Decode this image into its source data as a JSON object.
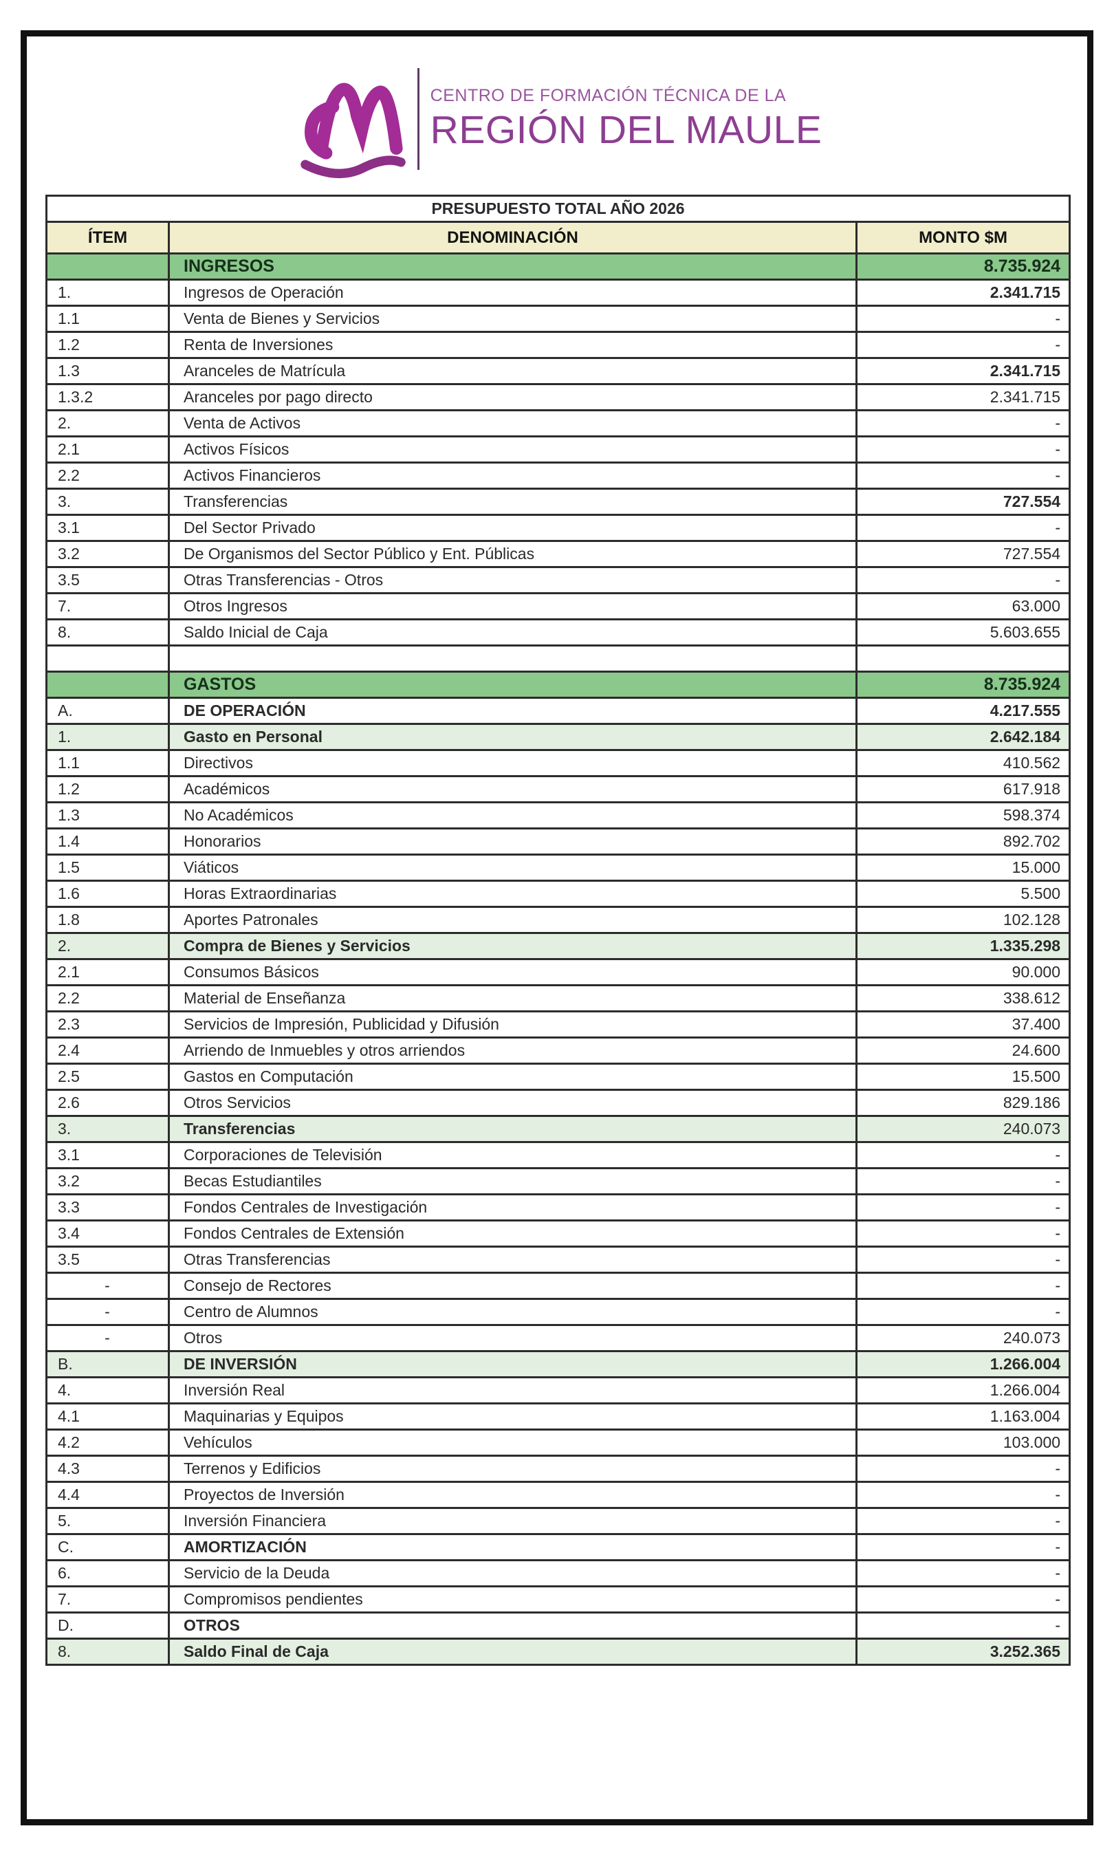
{
  "logo": {
    "line1": "CENTRO DE FORMACIÓN TÉCNICA DE LA",
    "line2": "REGIÓN DEL MAULE",
    "mark_color": "#a32c96",
    "accent_color": "#8d3e92"
  },
  "colors": {
    "header_cream": "#f2eecb",
    "section_green": "#8bc88b",
    "subsection_green": "#e3efe0",
    "border_dark": "#2c2c2c"
  },
  "table": {
    "title": "PRESUPUESTO TOTAL AÑO 2026",
    "columns": [
      "ÍTEM",
      "DENOMINACIÓN",
      "MONTO $M"
    ],
    "rows": [
      {
        "item": "",
        "name": "INGRESOS",
        "amount": "8.735.924",
        "style": "section",
        "nb": true,
        "ab": true
      },
      {
        "item": "1.",
        "name": "Ingresos de Operación",
        "amount": "2.341.715",
        "style": "plain",
        "nb": false,
        "ab": true
      },
      {
        "item": "1.1",
        "name": "Venta de Bienes y Servicios",
        "amount": "-",
        "style": "plain",
        "nb": false,
        "ab": false
      },
      {
        "item": "1.2",
        "name": "Renta de Inversiones",
        "amount": "-",
        "style": "plain",
        "nb": false,
        "ab": false
      },
      {
        "item": "1.3",
        "name": "Aranceles de Matrícula",
        "amount": "2.341.715",
        "style": "plain",
        "nb": false,
        "ab": true
      },
      {
        "item": "1.3.2",
        "name": "Aranceles por pago directo",
        "amount": "2.341.715",
        "style": "plain",
        "nb": false,
        "ab": false
      },
      {
        "item": "2.",
        "name": "Venta de Activos",
        "amount": "-",
        "style": "plain",
        "nb": false,
        "ab": false
      },
      {
        "item": "2.1",
        "name": "Activos Físicos",
        "amount": "-",
        "style": "plain",
        "nb": false,
        "ab": false
      },
      {
        "item": "2.2",
        "name": "Activos Financieros",
        "amount": "-",
        "style": "plain",
        "nb": false,
        "ab": false
      },
      {
        "item": "3.",
        "name": "Transferencias",
        "amount": "727.554",
        "style": "plain",
        "nb": false,
        "ab": true
      },
      {
        "item": "3.1",
        "name": "Del Sector Privado",
        "amount": "-",
        "style": "plain",
        "nb": false,
        "ab": false
      },
      {
        "item": "3.2",
        "name": "De Organismos del Sector Público y Ent. Públicas",
        "amount": "727.554",
        "style": "plain",
        "nb": false,
        "ab": false
      },
      {
        "item": "3.5",
        "name": "Otras Transferencias - Otros",
        "amount": "-",
        "style": "plain",
        "nb": false,
        "ab": false
      },
      {
        "item": "7.",
        "name": "Otros Ingresos",
        "amount": "63.000",
        "style": "plain",
        "nb": false,
        "ab": false
      },
      {
        "item": "8.",
        "name": "Saldo Inicial de Caja",
        "amount": "5.603.655",
        "style": "plain",
        "nb": false,
        "ab": false
      },
      {
        "item": "",
        "name": "",
        "amount": "",
        "style": "blank",
        "nb": false,
        "ab": false
      },
      {
        "item": "",
        "name": "GASTOS",
        "amount": "8.735.924",
        "style": "section",
        "nb": true,
        "ab": true
      },
      {
        "item": "A.",
        "name": "DE OPERACIÓN",
        "amount": "4.217.555",
        "style": "plain",
        "nb": true,
        "ab": true
      },
      {
        "item": "1.",
        "name": "Gasto en Personal",
        "amount": "2.642.184",
        "style": "sub",
        "nb": true,
        "ab": true
      },
      {
        "item": "1.1",
        "name": "Directivos",
        "amount": "410.562",
        "style": "plain",
        "nb": false,
        "ab": false
      },
      {
        "item": "1.2",
        "name": "Académicos",
        "amount": "617.918",
        "style": "plain",
        "nb": false,
        "ab": false
      },
      {
        "item": "1.3",
        "name": "No Académicos",
        "amount": "598.374",
        "style": "plain",
        "nb": false,
        "ab": false
      },
      {
        "item": "1.4",
        "name": "Honorarios",
        "amount": "892.702",
        "style": "plain",
        "nb": false,
        "ab": false
      },
      {
        "item": "1.5",
        "name": "Viáticos",
        "amount": "15.000",
        "style": "plain",
        "nb": false,
        "ab": false
      },
      {
        "item": "1.6",
        "name": "Horas Extraordinarias",
        "amount": "5.500",
        "style": "plain",
        "nb": false,
        "ab": false
      },
      {
        "item": "1.8",
        "name": "Aportes Patronales",
        "amount": "102.128",
        "style": "plain",
        "nb": false,
        "ab": false
      },
      {
        "item": "2.",
        "name": "Compra de Bienes y Servicios",
        "amount": "1.335.298",
        "style": "sub",
        "nb": true,
        "ab": true
      },
      {
        "item": "2.1",
        "name": "Consumos Básicos",
        "amount": "90.000",
        "style": "plain",
        "nb": false,
        "ab": false
      },
      {
        "item": "2.2",
        "name": "Material de Enseñanza",
        "amount": "338.612",
        "style": "plain",
        "nb": false,
        "ab": false
      },
      {
        "item": "2.3",
        "name": "Servicios de Impresión, Publicidad y Difusión",
        "amount": "37.400",
        "style": "plain",
        "nb": false,
        "ab": false
      },
      {
        "item": "2.4",
        "name": "Arriendo de Inmuebles y otros arriendos",
        "amount": "24.600",
        "style": "plain",
        "nb": false,
        "ab": false
      },
      {
        "item": "2.5",
        "name": "Gastos en Computación",
        "amount": "15.500",
        "style": "plain",
        "nb": false,
        "ab": false
      },
      {
        "item": "2.6",
        "name": "Otros Servicios",
        "amount": "829.186",
        "style": "plain",
        "nb": false,
        "ab": false
      },
      {
        "item": "3.",
        "name": "Transferencias",
        "amount": "240.073",
        "style": "sub",
        "nb": true,
        "ab": false
      },
      {
        "item": "3.1",
        "name": "Corporaciones de Televisión",
        "amount": "-",
        "style": "plain",
        "nb": false,
        "ab": false
      },
      {
        "item": "3.2",
        "name": "Becas Estudiantiles",
        "amount": "-",
        "style": "plain",
        "nb": false,
        "ab": false
      },
      {
        "item": "3.3",
        "name": "Fondos Centrales de Investigación",
        "amount": "-",
        "style": "plain",
        "nb": false,
        "ab": false
      },
      {
        "item": "3.4",
        "name": "Fondos Centrales de Extensión",
        "amount": "-",
        "style": "plain",
        "nb": false,
        "ab": false
      },
      {
        "item": "3.5",
        "name": "Otras Transferencias",
        "amount": "-",
        "style": "plain",
        "nb": false,
        "ab": false
      },
      {
        "item": "-",
        "name": "Consejo de Rectores",
        "amount": "-",
        "style": "plain",
        "nb": false,
        "ab": false,
        "ic": true
      },
      {
        "item": "-",
        "name": "Centro de Alumnos",
        "amount": "-",
        "style": "plain",
        "nb": false,
        "ab": false,
        "ic": true
      },
      {
        "item": "-",
        "name": "Otros",
        "amount": "240.073",
        "style": "plain",
        "nb": false,
        "ab": false,
        "ic": true
      },
      {
        "item": "B.",
        "name": "DE INVERSIÓN",
        "amount": "1.266.004",
        "style": "sub",
        "nb": true,
        "ab": true
      },
      {
        "item": "4.",
        "name": "Inversión Real",
        "amount": "1.266.004",
        "style": "plain",
        "nb": false,
        "ab": false
      },
      {
        "item": "4.1",
        "name": "Maquinarias y Equipos",
        "amount": "1.163.004",
        "style": "plain",
        "nb": false,
        "ab": false
      },
      {
        "item": "4.2",
        "name": "Vehículos",
        "amount": "103.000",
        "style": "plain",
        "nb": false,
        "ab": false
      },
      {
        "item": "4.3",
        "name": "Terrenos y Edificios",
        "amount": "-",
        "style": "plain",
        "nb": false,
        "ab": false
      },
      {
        "item": "4.4",
        "name": "Proyectos de Inversión",
        "amount": "-",
        "style": "plain",
        "nb": false,
        "ab": false
      },
      {
        "item": "5.",
        "name": "Inversión Financiera",
        "amount": "-",
        "style": "plain",
        "nb": false,
        "ab": false
      },
      {
        "item": "C.",
        "name": "AMORTIZACIÓN",
        "amount": "-",
        "style": "plain",
        "nb": true,
        "ab": false
      },
      {
        "item": "6.",
        "name": "Servicio de la Deuda",
        "amount": "-",
        "style": "plain",
        "nb": false,
        "ab": false
      },
      {
        "item": "7.",
        "name": "Compromisos pendientes",
        "amount": "-",
        "style": "plain",
        "nb": false,
        "ab": false
      },
      {
        "item": "D.",
        "name": "OTROS",
        "amount": "-",
        "style": "plain",
        "nb": true,
        "ab": false
      },
      {
        "item": "8.",
        "name": "Saldo Final de Caja",
        "amount": "3.252.365",
        "style": "sub",
        "nb": true,
        "ab": true
      }
    ]
  }
}
